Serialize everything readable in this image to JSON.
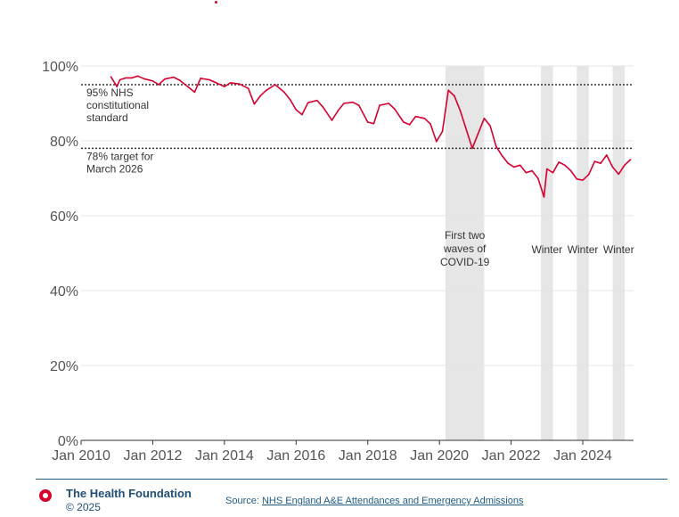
{
  "chart_data": {
    "type": "line",
    "title": "",
    "xlabel": "",
    "ylabel": "",
    "x_ticks": [
      "Jan 2010",
      "Jan 2012",
      "Jan 2014",
      "Jan 2016",
      "Jan 2018",
      "Jan 2020",
      "Jan 2022",
      "Jan 2024"
    ],
    "y_ticks": [
      "0%",
      "20%",
      "40%",
      "60%",
      "80%",
      "100%"
    ],
    "xlim": [
      "2010-01",
      "2025-06"
    ],
    "ylim": [
      0,
      100
    ],
    "grid": true,
    "series_color": "#d6002f",
    "series": [
      {
        "name": "",
        "points": [
          [
            "2010-11",
            97.1
          ],
          [
            "2011-01",
            94.5
          ],
          [
            "2011-02",
            96.3
          ],
          [
            "2011-04",
            96.8
          ],
          [
            "2011-06",
            96.8
          ],
          [
            "2011-08",
            97.3
          ],
          [
            "2011-10",
            96.6
          ],
          [
            "2012-01",
            96.0
          ],
          [
            "2012-03",
            95.0
          ],
          [
            "2012-05",
            96.5
          ],
          [
            "2012-08",
            97.0
          ],
          [
            "2012-10",
            96.2
          ],
          [
            "2013-01",
            94.3
          ],
          [
            "2013-03",
            93.0
          ],
          [
            "2013-05",
            96.7
          ],
          [
            "2013-08",
            96.3
          ],
          [
            "2013-10",
            95.6
          ],
          [
            "2014-01",
            94.5
          ],
          [
            "2014-03",
            95.5
          ],
          [
            "2014-06",
            95.2
          ],
          [
            "2014-09",
            94.0
          ],
          [
            "2014-11",
            89.8
          ],
          [
            "2015-01",
            92.0
          ],
          [
            "2015-03",
            93.5
          ],
          [
            "2015-06",
            95.0
          ],
          [
            "2015-09",
            93.0
          ],
          [
            "2015-11",
            91.0
          ],
          [
            "2016-01",
            88.3
          ],
          [
            "2016-03",
            87.0
          ],
          [
            "2016-05",
            90.2
          ],
          [
            "2016-08",
            90.8
          ],
          [
            "2016-10",
            89.0
          ],
          [
            "2017-01",
            85.5
          ],
          [
            "2017-03",
            88.0
          ],
          [
            "2017-05",
            90.0
          ],
          [
            "2017-08",
            90.3
          ],
          [
            "2017-10",
            89.5
          ],
          [
            "2018-01",
            85.0
          ],
          [
            "2018-03",
            84.6
          ],
          [
            "2018-05",
            89.5
          ],
          [
            "2018-08",
            90.0
          ],
          [
            "2018-10",
            88.5
          ],
          [
            "2019-01",
            85.0
          ],
          [
            "2019-03",
            84.3
          ],
          [
            "2019-05",
            86.5
          ],
          [
            "2019-08",
            86.0
          ],
          [
            "2019-10",
            84.5
          ],
          [
            "2019-12",
            79.8
          ],
          [
            "2020-02",
            82.5
          ],
          [
            "2020-04",
            93.5
          ],
          [
            "2020-06",
            92.0
          ],
          [
            "2020-08",
            88.0
          ],
          [
            "2020-10",
            83.0
          ],
          [
            "2020-12",
            78.0
          ],
          [
            "2021-02",
            82.0
          ],
          [
            "2021-04",
            86.0
          ],
          [
            "2021-06",
            84.0
          ],
          [
            "2021-08",
            78.5
          ],
          [
            "2021-10",
            76.0
          ],
          [
            "2021-12",
            74.0
          ],
          [
            "2022-02",
            73.0
          ],
          [
            "2022-04",
            73.5
          ],
          [
            "2022-06",
            71.5
          ],
          [
            "2022-08",
            72.0
          ],
          [
            "2022-10",
            70.0
          ],
          [
            "2022-12",
            65.0
          ],
          [
            "2023-01",
            72.5
          ],
          [
            "2023-03",
            71.5
          ],
          [
            "2023-05",
            74.3
          ],
          [
            "2023-07",
            73.5
          ],
          [
            "2023-09",
            72.0
          ],
          [
            "2023-11",
            69.8
          ],
          [
            "2024-01",
            69.5
          ],
          [
            "2024-03",
            71.0
          ],
          [
            "2024-05",
            74.5
          ],
          [
            "2024-07",
            74.0
          ],
          [
            "2024-09",
            76.2
          ],
          [
            "2024-11",
            73.0
          ],
          [
            "2025-01",
            71.1
          ],
          [
            "2025-03",
            73.5
          ],
          [
            "2025-05",
            75.0
          ]
        ]
      }
    ],
    "reference_lines": [
      {
        "value": 95,
        "label": [
          "95% NHS",
          "constitutional",
          "standard"
        ]
      },
      {
        "value": 78,
        "label": [
          "78% target for",
          "March 2026"
        ]
      }
    ],
    "shaded_periods": [
      {
        "start": "2020-03",
        "end": "2021-04",
        "label": [
          "First two",
          "waves of",
          "COVID-19"
        ]
      },
      {
        "start": "2022-11",
        "end": "2023-03",
        "label": [
          "Winter"
        ]
      },
      {
        "start": "2023-11",
        "end": "2024-03",
        "label": [
          "Winter"
        ]
      },
      {
        "start": "2024-11",
        "end": "2025-03",
        "label": [
          "Winter"
        ]
      }
    ]
  },
  "footer": {
    "organisation": "The Health Foundation",
    "copyright": "© 2025",
    "source_prefix": "Source:",
    "source_link": "NHS England A&E Attendances and Emergency Admissions"
  }
}
